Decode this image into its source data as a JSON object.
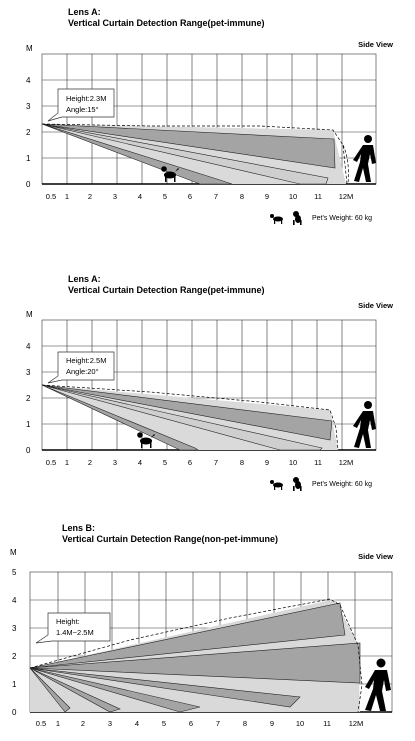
{
  "diagrams": [
    {
      "title_line1": "Lens A:",
      "title_line2": "Vertical Curtain Detection Range(pet-immune)",
      "view_label": "Side View",
      "y_axis_unit": "M",
      "y_ticks": [
        "0",
        "1",
        "2",
        "3",
        "4"
      ],
      "x_ticks": [
        "0.5",
        "1",
        "2",
        "3",
        "4",
        "5",
        "6",
        "7",
        "8",
        "9",
        "10",
        "11",
        "12M"
      ],
      "callout_lines": [
        "Height:2.3M",
        "Angle:15°"
      ],
      "pet_weight_label": "Pet's Weight: 60 kg",
      "icons": [
        "dog-icon",
        "person-walking-icon",
        "small-dog-icon",
        "poodle-icon"
      ]
    },
    {
      "title_line1": "Lens A:",
      "title_line2": "Vertical Curtain Detection Range(pet-immune)",
      "view_label": "Side View",
      "y_axis_unit": "M",
      "y_ticks": [
        "0",
        "1",
        "2",
        "3",
        "4"
      ],
      "x_ticks": [
        "0.5",
        "1",
        "2",
        "3",
        "4",
        "5",
        "6",
        "7",
        "8",
        "9",
        "10",
        "11",
        "12M"
      ],
      "callout_lines": [
        "Height:2.5M",
        "Angle:20°"
      ],
      "pet_weight_label": "Pet's Weight: 60 kg",
      "icons": [
        "dog-icon",
        "person-walking-icon",
        "small-dog-icon",
        "poodle-icon"
      ]
    },
    {
      "title_line1": "Lens B:",
      "title_line2": "Vertical Curtain Detection Range(non-pet-immune)",
      "view_label": "Side View",
      "y_axis_unit": "M",
      "y_ticks": [
        "0",
        "1",
        "2",
        "3",
        "4",
        "5"
      ],
      "x_ticks": [
        "0.5",
        "1",
        "2",
        "3",
        "4",
        "5",
        "6",
        "7",
        "8",
        "9",
        "10",
        "11",
        "12M"
      ],
      "callout_lines": [
        "Height:",
        "1.4M~2.5M"
      ],
      "icons": [
        "person-walking-icon"
      ]
    }
  ]
}
